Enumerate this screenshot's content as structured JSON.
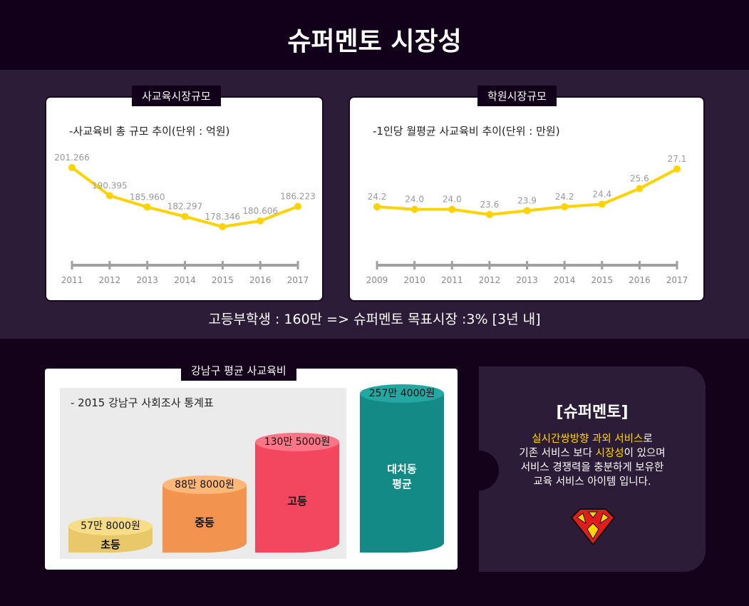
{
  "title": "슈퍼멘토 시장성",
  "chart_data": [
    {
      "type": "line",
      "tag": "사교육시장규모",
      "title": "-사교육비 총 규모 추이(단위 : 억원)",
      "categories": [
        "2011",
        "2012",
        "2013",
        "2014",
        "2015",
        "2016",
        "2017"
      ],
      "values": [
        201.266,
        190.395,
        185.96,
        182.297,
        178.346,
        180.606,
        186.223
      ],
      "labels": [
        "201.266",
        "190.395",
        "185.960",
        "182.297",
        "178.346",
        "180.606",
        "186.223"
      ],
      "color": "#ffd200"
    },
    {
      "type": "line",
      "tag": "학원시장규모",
      "title": "-1인당 월평균 사교육비 추이(단위 : 만원)",
      "categories": [
        "2009",
        "2010",
        "2011",
        "2012",
        "2013",
        "2014",
        "2015",
        "2016",
        "2017"
      ],
      "values": [
        24.2,
        24.0,
        24.0,
        23.6,
        23.9,
        24.2,
        24.4,
        25.6,
        27.1
      ],
      "labels": [
        "24.2",
        "24.0",
        "24.0",
        "23.6",
        "23.9",
        "24.2",
        "24.4",
        "25.6",
        "27.1"
      ],
      "color": "#ffd200"
    },
    {
      "type": "bar",
      "tag": "강남구 평균 사교육비",
      "title": "- 2015 강남구 사회조사 통계표",
      "categories": [
        "초등",
        "중등",
        "고등",
        "대치동 평균"
      ],
      "labels": [
        "57만 8000원",
        "88만 8000원",
        "130만 5000원",
        "257만 4000원"
      ],
      "values": [
        578000,
        888000,
        1305000,
        2574000
      ]
    }
  ],
  "goal": "고등부학생 : 160만 => 슈퍼멘토 목표시장 :3% [3년 내]",
  "panel": {
    "title": "[슈퍼멘토]",
    "l1a": "실시간쌍방향 과외 서비스",
    "l1b": "로",
    "l2a": "기존 서비스 보다 ",
    "l2b": "시장성",
    "l2c": "이 있으며",
    "l3": "서비스 경쟁력을 충분하게 보유한",
    "l4": "교육 서비스 아이템 입니다.",
    "logo": "M"
  }
}
